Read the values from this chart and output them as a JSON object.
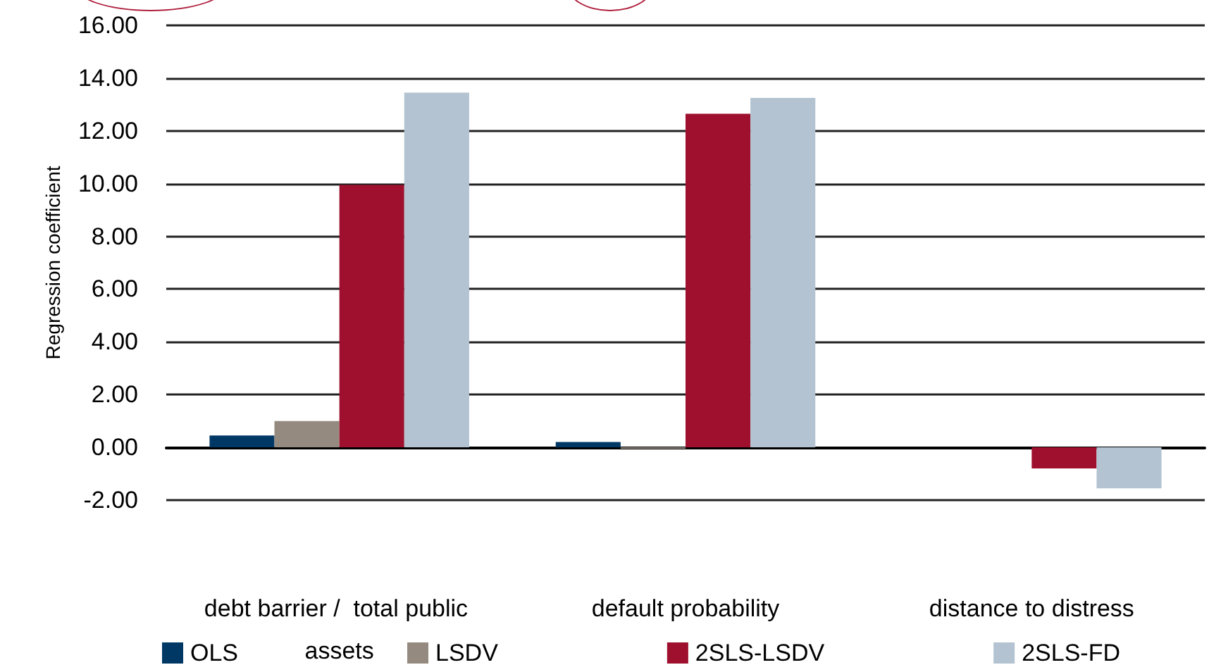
{
  "chart_data": {
    "type": "bar",
    "ylabel": "Regression coefficient",
    "categories": [
      "debt barrier /  total public assets",
      "default probability",
      "distance to distress"
    ],
    "series": [
      {
        "name": "OLS",
        "color": "#003865",
        "values": [
          0.45,
          0.2,
          null
        ]
      },
      {
        "name": "LSDV",
        "color": "#948a80",
        "values": [
          1.0,
          -0.05,
          null
        ]
      },
      {
        "name": "2SLS-LSDV",
        "color": "#9e102e",
        "values": [
          9.95,
          12.65,
          -0.8
        ]
      },
      {
        "name": "2SLS-FD",
        "color": "#b3c3d1",
        "values": [
          13.45,
          13.25,
          -1.55
        ]
      }
    ],
    "ylim": [
      -2,
      16
    ],
    "yticks": [
      {
        "value": -2,
        "label": "-2.00"
      },
      {
        "value": 0,
        "label": "0.00"
      },
      {
        "value": 2,
        "label": "2.00"
      },
      {
        "value": 4,
        "label": "4.00"
      },
      {
        "value": 6,
        "label": "6.00"
      },
      {
        "value": 8,
        "label": "8.00"
      },
      {
        "value": 10,
        "label": "10.00"
      },
      {
        "value": 12,
        "label": "12.00"
      },
      {
        "value": 14,
        "label": "14.00"
      },
      {
        "value": 16,
        "label": "16.00"
      }
    ],
    "grid": "y",
    "legend": "bottom"
  }
}
